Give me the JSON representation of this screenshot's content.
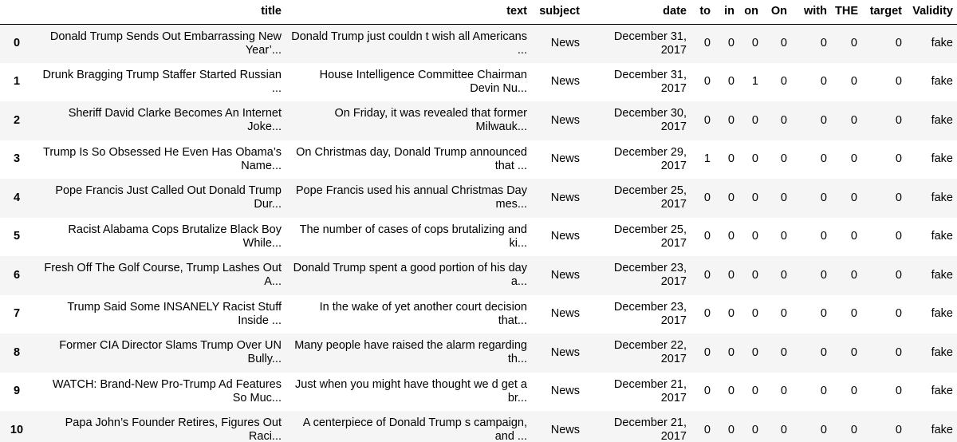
{
  "table": {
    "columns": {
      "index": "",
      "title": "title",
      "text": "text",
      "subject": "subject",
      "date": "date",
      "to": "to",
      "in": "in",
      "on": "on",
      "On": "On",
      "with": "with",
      "THE": "THE",
      "target": "target",
      "validity": "Validity"
    },
    "rows": [
      {
        "index": "0",
        "title": "Donald Trump Sends Out Embarrassing New Year’...",
        "text": "Donald Trump just couldn t wish all Americans ...",
        "subject": "News",
        "date": "December 31, 2017",
        "to": "0",
        "in": "0",
        "on": "0",
        "On": "0",
        "with": "0",
        "THE": "0",
        "target": "0",
        "validity": "fake"
      },
      {
        "index": "1",
        "title": "Drunk Bragging Trump Staffer Started Russian ...",
        "text": "House Intelligence Committee Chairman Devin Nu...",
        "subject": "News",
        "date": "December 31, 2017",
        "to": "0",
        "in": "0",
        "on": "1",
        "On": "0",
        "with": "0",
        "THE": "0",
        "target": "0",
        "validity": "fake"
      },
      {
        "index": "2",
        "title": "Sheriff David Clarke Becomes An Internet Joke...",
        "text": "On Friday, it was revealed that former Milwauk...",
        "subject": "News",
        "date": "December 30, 2017",
        "to": "0",
        "in": "0",
        "on": "0",
        "On": "0",
        "with": "0",
        "THE": "0",
        "target": "0",
        "validity": "fake"
      },
      {
        "index": "3",
        "title": "Trump Is So Obsessed He Even Has Obama’s Name...",
        "text": "On Christmas day, Donald Trump announced that ...",
        "subject": "News",
        "date": "December 29, 2017",
        "to": "1",
        "in": "0",
        "on": "0",
        "On": "0",
        "with": "0",
        "THE": "0",
        "target": "0",
        "validity": "fake"
      },
      {
        "index": "4",
        "title": "Pope Francis Just Called Out Donald Trump Dur...",
        "text": "Pope Francis used his annual Christmas Day mes...",
        "subject": "News",
        "date": "December 25, 2017",
        "to": "0",
        "in": "0",
        "on": "0",
        "On": "0",
        "with": "0",
        "THE": "0",
        "target": "0",
        "validity": "fake"
      },
      {
        "index": "5",
        "title": "Racist Alabama Cops Brutalize Black Boy While...",
        "text": "The number of cases of cops brutalizing and ki...",
        "subject": "News",
        "date": "December 25, 2017",
        "to": "0",
        "in": "0",
        "on": "0",
        "On": "0",
        "with": "0",
        "THE": "0",
        "target": "0",
        "validity": "fake"
      },
      {
        "index": "6",
        "title": "Fresh Off The Golf Course, Trump Lashes Out A...",
        "text": "Donald Trump spent a good portion of his day a...",
        "subject": "News",
        "date": "December 23, 2017",
        "to": "0",
        "in": "0",
        "on": "0",
        "On": "0",
        "with": "0",
        "THE": "0",
        "target": "0",
        "validity": "fake"
      },
      {
        "index": "7",
        "title": "Trump Said Some INSANELY Racist Stuff Inside ...",
        "text": "In the wake of yet another court decision that...",
        "subject": "News",
        "date": "December 23, 2017",
        "to": "0",
        "in": "0",
        "on": "0",
        "On": "0",
        "with": "0",
        "THE": "0",
        "target": "0",
        "validity": "fake"
      },
      {
        "index": "8",
        "title": "Former CIA Director Slams Trump Over UN Bully...",
        "text": "Many people have raised the alarm regarding th...",
        "subject": "News",
        "date": "December 22, 2017",
        "to": "0",
        "in": "0",
        "on": "0",
        "On": "0",
        "with": "0",
        "THE": "0",
        "target": "0",
        "validity": "fake"
      },
      {
        "index": "9",
        "title": "WATCH: Brand-New Pro-Trump Ad Features So Muc...",
        "text": "Just when you might have thought we d get a br...",
        "subject": "News",
        "date": "December 21, 2017",
        "to": "0",
        "in": "0",
        "on": "0",
        "On": "0",
        "with": "0",
        "THE": "0",
        "target": "0",
        "validity": "fake"
      },
      {
        "index": "10",
        "title": "Papa John’s Founder Retires, Figures Out Raci...",
        "text": "A centerpiece of Donald Trump s campaign, and ...",
        "subject": "News",
        "date": "December 21, 2017",
        "to": "0",
        "in": "0",
        "on": "0",
        "On": "0",
        "with": "0",
        "THE": "0",
        "target": "0",
        "validity": "fake"
      }
    ]
  }
}
